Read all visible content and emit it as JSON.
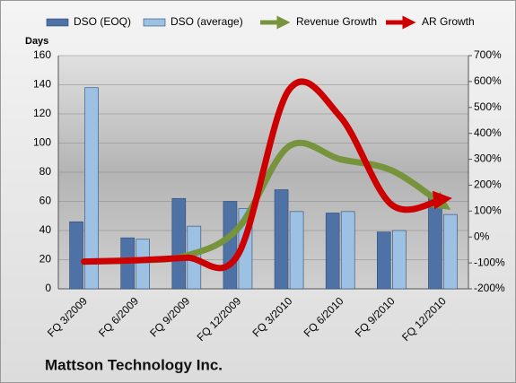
{
  "chart_data": {
    "type": "bar_line_combo",
    "title": "Mattson Technology Inc.",
    "y_label": "Days",
    "categories": [
      "FQ 3/2009",
      "FQ 6/2009",
      "FQ 9/2009",
      "FQ 12/2009",
      "FQ 3/2010",
      "FQ 6/2010",
      "FQ 9/2010",
      "FQ 12/2010"
    ],
    "series": [
      {
        "name": "DSO (EOQ)",
        "kind": "bar",
        "color": "#4f72a6",
        "values": [
          46,
          35,
          62,
          60,
          68,
          52,
          39,
          63
        ]
      },
      {
        "name": "DSO (average)",
        "kind": "bar",
        "color": "#9dc1e3",
        "values": [
          138,
          34,
          43,
          55,
          53,
          53,
          40,
          51
        ]
      },
      {
        "name": "Revenue Growth",
        "kind": "line",
        "axis": "y2",
        "color": "#77933c",
        "values": [
          -95,
          -90,
          -72,
          32,
          350,
          300,
          257,
          125
        ]
      },
      {
        "name": "AR Growth",
        "kind": "line",
        "axis": "y2",
        "color": "#cc0000",
        "values": [
          -95,
          -90,
          -80,
          -70,
          568,
          464,
          125,
          146
        ]
      }
    ],
    "ylim": [
      0,
      160
    ],
    "yticks": [
      0,
      20,
      40,
      60,
      80,
      100,
      120,
      140,
      160
    ],
    "y2lim": [
      -200,
      700
    ],
    "y2ticks": [
      {
        "value": -200,
        "label": "-200%"
      },
      {
        "value": -100,
        "label": "-100%"
      },
      {
        "value": 0,
        "label": "0%"
      },
      {
        "value": 100,
        "label": "100%"
      },
      {
        "value": 200,
        "label": "200%"
      },
      {
        "value": 300,
        "label": "300%"
      },
      {
        "value": 400,
        "label": "400%"
      },
      {
        "value": 500,
        "label": "500%"
      },
      {
        "value": 600,
        "label": "600%"
      },
      {
        "value": 700,
        "label": "700%"
      }
    ],
    "grid": true,
    "legend": "top"
  }
}
